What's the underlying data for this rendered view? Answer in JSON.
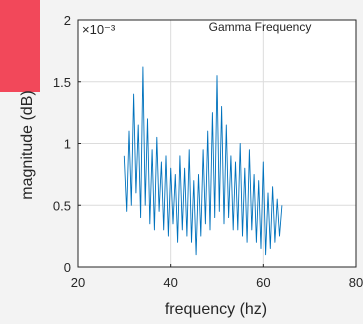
{
  "chart_data": {
    "type": "line",
    "title": "Gamma Frequency",
    "xlabel": "frequency (hz)",
    "ylabel": "magnitude (dB)",
    "y_exponent_label": "×10⁻³",
    "xlim": [
      20,
      80
    ],
    "ylim": [
      0,
      2
    ],
    "xticks": [
      20,
      40,
      60,
      80
    ],
    "xtick_labels": [
      "20",
      "40",
      "60",
      "80"
    ],
    "yticks": [
      0,
      0.5,
      1,
      1.5,
      2
    ],
    "ytick_labels": [
      "0",
      "0.5",
      "1",
      "1.5",
      "2"
    ],
    "grid": true,
    "line_color": "#0072bd",
    "accent_color": "#f2485a",
    "x": [
      30,
      30.5,
      31,
      31.5,
      32,
      32.5,
      33,
      33.5,
      34,
      34.5,
      35,
      35.5,
      36,
      36.5,
      37,
      37.5,
      38,
      38.5,
      39,
      39.5,
      40,
      40.5,
      41,
      41.5,
      42,
      42.5,
      43,
      43.5,
      44,
      44.5,
      45,
      45.5,
      46,
      46.5,
      47,
      47.5,
      48,
      48.5,
      49,
      49.5,
      50,
      50.5,
      51,
      51.5,
      52,
      52.5,
      53,
      53.5,
      54,
      54.5,
      55,
      55.5,
      56,
      56.5,
      57,
      57.5,
      58,
      58.5,
      59,
      59.5,
      60,
      60.5,
      61,
      61.5,
      62,
      62.5,
      63,
      63.5,
      64
    ],
    "y": [
      0.9,
      0.45,
      1.1,
      0.5,
      1.4,
      0.6,
      1.15,
      0.4,
      1.62,
      0.5,
      1.2,
      0.35,
      0.95,
      0.3,
      1.05,
      0.45,
      0.85,
      0.3,
      0.9,
      0.25,
      0.8,
      0.35,
      0.75,
      0.2,
      0.9,
      0.3,
      0.8,
      0.25,
      0.95,
      0.2,
      0.7,
      0.1,
      0.75,
      0.25,
      0.95,
      0.35,
      1.1,
      0.3,
      1.25,
      0.4,
      1.55,
      0.45,
      1.3,
      0.35,
      1.15,
      0.4,
      0.9,
      0.3,
      0.85,
      0.3,
      1.0,
      0.25,
      0.8,
      0.2,
      0.95,
      0.3,
      0.75,
      0.2,
      0.7,
      0.15,
      0.85,
      0.1,
      0.6,
      0.15,
      0.65,
      0.2,
      0.55,
      0.25,
      0.5
    ]
  }
}
